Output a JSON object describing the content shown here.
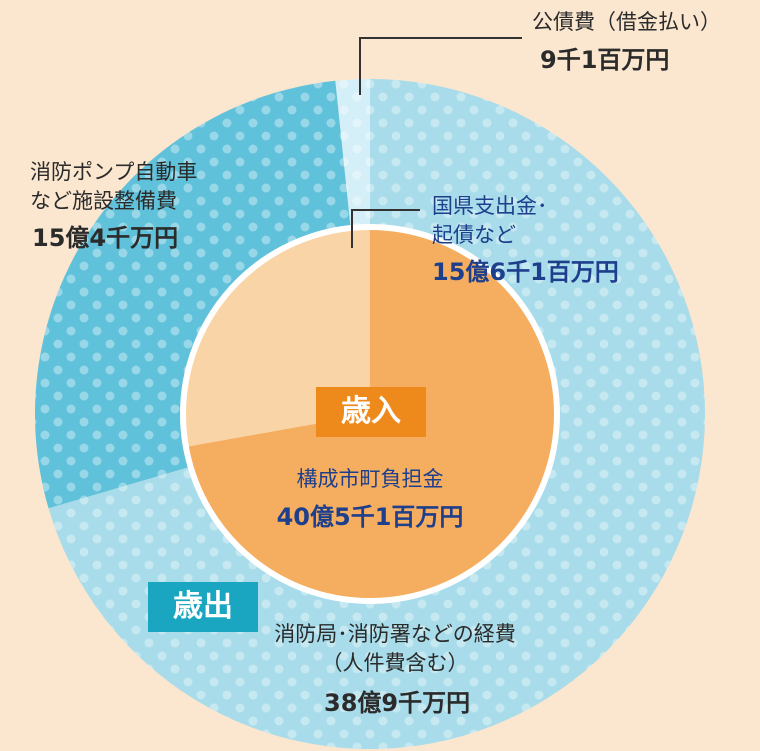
{
  "chart_data": [
    {
      "type": "pie",
      "title": "歳出",
      "categories": [
        "消防局･消防署などの経費\n（人件費含む）",
        "消防ポンプ自動車\nなど施設整備費",
        "公債費（借金払い）"
      ],
      "values": [
        3890000000,
        1540000000,
        91000000
      ],
      "value_labels": [
        "38億9千万円",
        "15億4千万円",
        "9千1百万円"
      ],
      "colors": [
        "#a8dcea",
        "#5fc1da",
        "#d4eff8"
      ]
    },
    {
      "type": "pie",
      "title": "歳入",
      "categories": [
        "構成市町負担金",
        "国県支出金･\n起債など"
      ],
      "values": [
        4051000000,
        1561000000
      ],
      "value_labels": [
        "40億5千1百万円",
        "15億6千1百万円"
      ],
      "colors": [
        "#f5ae60",
        "#f9d4a6"
      ]
    }
  ]
}
